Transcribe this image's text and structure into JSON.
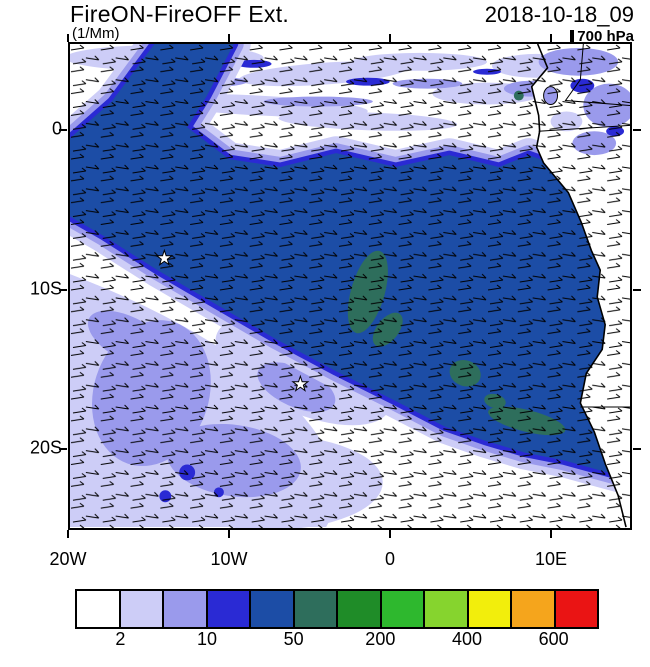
{
  "header": {
    "title": "FireON-FireOFF Ext.",
    "datetime": "2018-10-18_09",
    "units": "(1/Mm)",
    "level": "700 hPa"
  },
  "axes": {
    "lon_ticks": [
      {
        "label": "20W",
        "value": -20
      },
      {
        "label": "10W",
        "value": -10
      },
      {
        "label": "0",
        "value": 0
      },
      {
        "label": "10E",
        "value": 10
      }
    ],
    "lat_ticks": [
      {
        "label": "0",
        "value": 0
      },
      {
        "label": "10S",
        "value": -10
      },
      {
        "label": "20S",
        "value": -20
      }
    ]
  },
  "colorbar": {
    "colors": [
      "#ffffff",
      "#cdcdf7",
      "#9a9aec",
      "#2a2ad4",
      "#1c4da6",
      "#2e6e5c",
      "#1f8c28",
      "#2eb82e",
      "#86d42e",
      "#f2ee0c",
      "#f5a51c",
      "#ea1414"
    ],
    "tick_labels": [
      {
        "text": "2",
        "boundary": 1
      },
      {
        "text": "10",
        "boundary": 3
      },
      {
        "text": "50",
        "boundary": 5
      },
      {
        "text": "200",
        "boundary": 7
      },
      {
        "text": "400",
        "boundary": 9
      },
      {
        "text": "600",
        "boundary": 11
      }
    ]
  },
  "chart_data": {
    "type": "heatmap",
    "subtype": "filled contour map with wind barbs over the SE Atlantic / SW Africa",
    "title": "FireON-FireOFF Ext.",
    "timestamp": "2018-10-18_09",
    "units": "(1/Mm)",
    "level": "700 hPa",
    "x_axis": {
      "label": "longitude",
      "tick_labels": [
        "20W",
        "10W",
        "0",
        "10E"
      ],
      "range": [
        "20W",
        "15E"
      ]
    },
    "y_axis": {
      "label": "latitude",
      "tick_labels": [
        "0",
        "10S",
        "20S"
      ],
      "range": [
        "5N",
        "25S"
      ]
    },
    "colorbar": {
      "orientation": "horizontal",
      "n_cells": 12,
      "tick_labels": [
        "2",
        "10",
        "50",
        "200",
        "400",
        "600"
      ]
    },
    "field_summary": [
      "large dark-blue extinction-difference plume over the SE Atlantic stretching from the Angolan coast northwest past 20W between roughly 2S and 18S",
      "dark-green embedded maxima near 5W 10-13S, near 1W 16S, and along the coast near 11-14E 15-18S",
      "pale lavender/periwinkle weak-difference region over the southwest corner (5W-20W, 12S-25S) and wispy bands north of the equator",
      "light/medium blue patches over land in the northeast corner (Gulf of Guinea region)",
      "700 hPa wind barbs plotted across the entire domain"
    ],
    "markers": [
      {
        "symbol": "star",
        "lon": "14W",
        "lat": "8S"
      },
      {
        "symbol": "star",
        "lon": "5.5W",
        "lat": "16S"
      }
    ]
  }
}
